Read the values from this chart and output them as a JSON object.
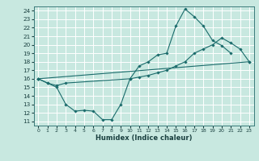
{
  "xlabel": "Humidex (Indice chaleur)",
  "xlim": [
    -0.5,
    23.5
  ],
  "ylim": [
    10.5,
    24.5
  ],
  "xticks": [
    0,
    1,
    2,
    3,
    4,
    5,
    6,
    7,
    8,
    9,
    10,
    11,
    12,
    13,
    14,
    15,
    16,
    17,
    18,
    19,
    20,
    21,
    22,
    23
  ],
  "yticks": [
    11,
    12,
    13,
    14,
    15,
    16,
    17,
    18,
    19,
    20,
    21,
    22,
    23,
    24
  ],
  "bg_color": "#c8e8e0",
  "grid_color": "#ffffff",
  "line_color": "#1a6b6b",
  "line1_x": [
    0,
    1,
    2,
    3,
    4,
    5,
    6,
    7,
    8,
    9,
    10,
    11,
    12,
    13,
    14,
    15,
    16,
    17,
    18,
    19,
    20,
    21
  ],
  "line1_y": [
    16.0,
    15.5,
    15.0,
    13.0,
    12.2,
    12.3,
    12.2,
    11.2,
    11.2,
    13.0,
    16.0,
    17.5,
    18.0,
    18.8,
    19.0,
    22.2,
    24.2,
    23.3,
    22.2,
    20.5,
    19.9,
    19.0
  ],
  "line2_x": [
    0,
    1,
    2,
    3,
    10,
    11,
    12,
    13,
    14,
    15,
    16,
    17,
    18,
    19,
    20,
    21,
    22,
    23
  ],
  "line2_y": [
    16.0,
    15.5,
    15.2,
    15.5,
    16.0,
    16.2,
    16.4,
    16.7,
    17.0,
    17.5,
    18.0,
    19.0,
    19.5,
    20.0,
    20.8,
    20.2,
    19.5,
    18.0
  ],
  "line3_x": [
    0,
    23
  ],
  "line3_y": [
    16.0,
    18.0
  ]
}
